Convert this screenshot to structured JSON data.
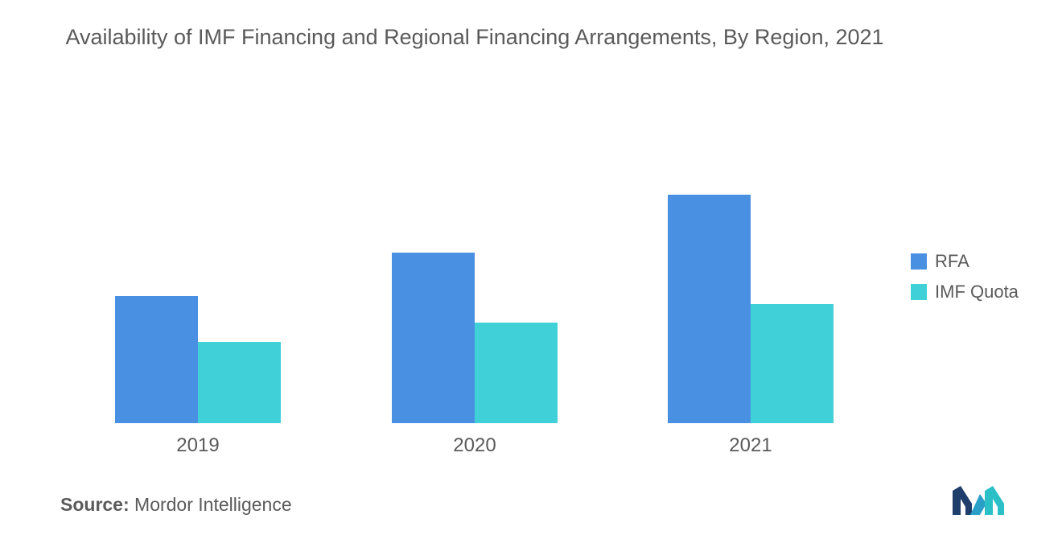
{
  "title": "Availability of IMF Financing and Regional Financing Arrangements, By Region, 2021",
  "source": {
    "label": "Source:",
    "value": "Mordor Intelligence"
  },
  "colors": {
    "rfa": "#4a90e2",
    "imf_quota": "#40d0d8",
    "axis": "#dddddd",
    "text": "#5a5a5a"
  },
  "logo_icon": "mordor-intelligence-logo-icon",
  "chart_data": {
    "type": "bar",
    "title": "Availability of IMF Financing and Regional Financing Arrangements, By Region, 2021",
    "categories": [
      "2019",
      "2020",
      "2021"
    ],
    "series": [
      {
        "name": "RFA",
        "values": [
          158,
          212,
          284
        ]
      },
      {
        "name": "IMF Quota",
        "values": [
          101,
          125,
          148
        ]
      }
    ],
    "xlabel": "",
    "ylabel": "",
    "ylim": [
      0,
      300
    ],
    "grid": false,
    "legend": "right"
  }
}
